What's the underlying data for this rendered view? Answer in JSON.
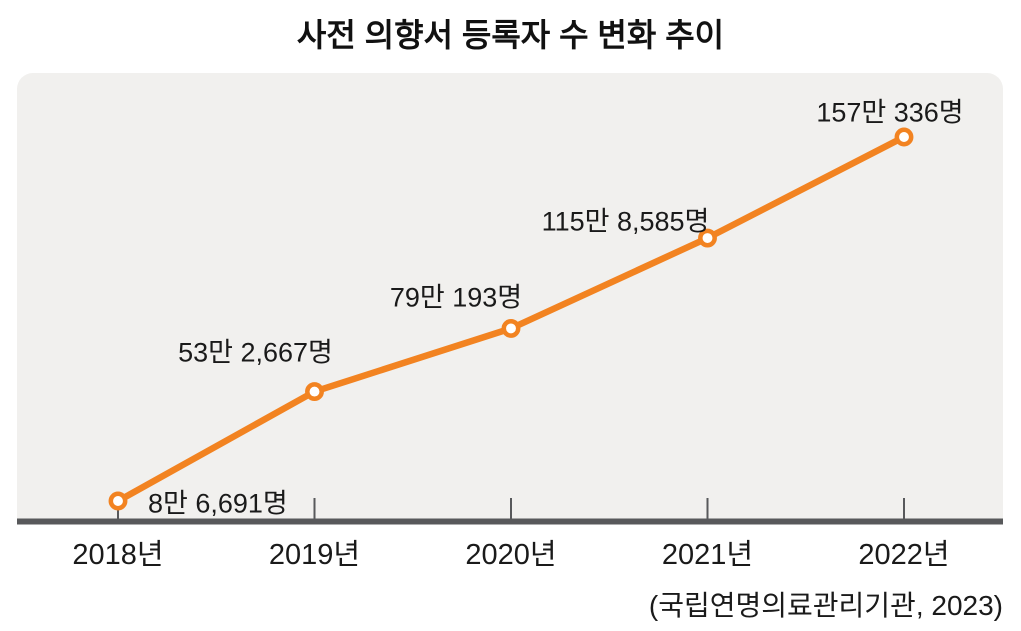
{
  "title": "사전 의향서 등록자 수 변화 추이",
  "source": "(국립연명의료관리기관, 2023)",
  "chart_data": {
    "type": "line",
    "title": "사전 의향서 등록자 수 변화 추이",
    "categories": [
      "2018년",
      "2019년",
      "2020년",
      "2021년",
      "2022년"
    ],
    "values": [
      86691,
      532667,
      790193,
      1158585,
      1570336
    ],
    "point_labels": [
      "8만 6,691명",
      "53만 2,667명",
      "79만 193명",
      "115만 8,585명",
      "157만 336명"
    ],
    "unit": "명",
    "xlabel": "",
    "ylabel": "",
    "y_axis": "hidden",
    "grid": false,
    "legend_position": "none",
    "source": "(국립연명의료관리기관, 2023)",
    "colors": {
      "line": "#F28321",
      "marker_fill": "#FFFFFF",
      "plot_background": "#F1F0EE",
      "axis": "#58595B",
      "text": "#1A1A1A"
    }
  }
}
